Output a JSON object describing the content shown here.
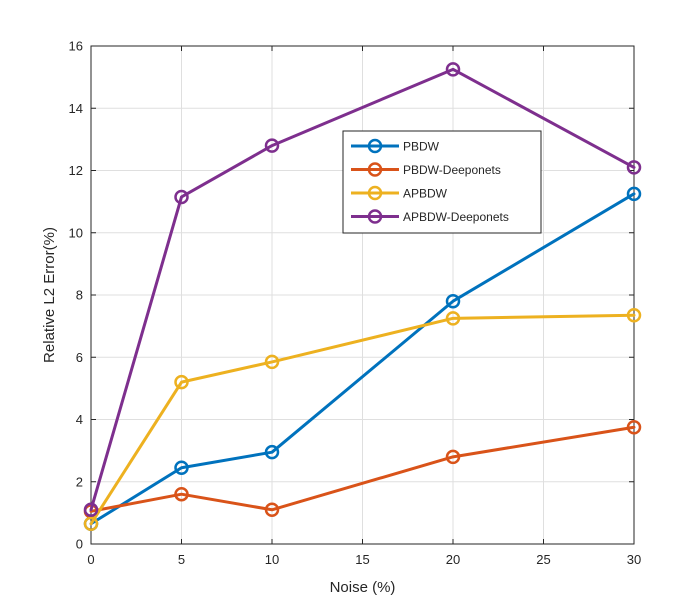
{
  "chart_data": {
    "type": "line",
    "title": "",
    "xlabel": "Noise (%)",
    "ylabel": "Relative L2 Error(%)",
    "xlim": [
      0,
      30
    ],
    "ylim": [
      0,
      16
    ],
    "grid": true,
    "legend_position": "upper-center",
    "xticks": [
      "0",
      "5",
      "10",
      "15",
      "20",
      "25",
      "30"
    ],
    "yticks": [
      "0",
      "2",
      "4",
      "6",
      "8",
      "10",
      "12",
      "14",
      "16"
    ],
    "x": [
      0,
      5,
      10,
      20,
      30
    ],
    "series": [
      {
        "name": "PBDW",
        "color": "#0072BD",
        "values": [
          0.65,
          2.45,
          2.95,
          7.8,
          11.25
        ]
      },
      {
        "name": "PBDW-Deeponets",
        "color": "#D95319",
        "values": [
          1.05,
          1.6,
          1.1,
          2.8,
          3.75
        ]
      },
      {
        "name": "APBDW",
        "color": "#EDB120",
        "values": [
          0.65,
          5.2,
          5.85,
          7.25,
          7.35
        ]
      },
      {
        "name": "APBDW-Deeponets",
        "color": "#7E2F8E",
        "values": [
          1.1,
          11.15,
          12.8,
          15.25,
          12.1
        ]
      }
    ]
  }
}
